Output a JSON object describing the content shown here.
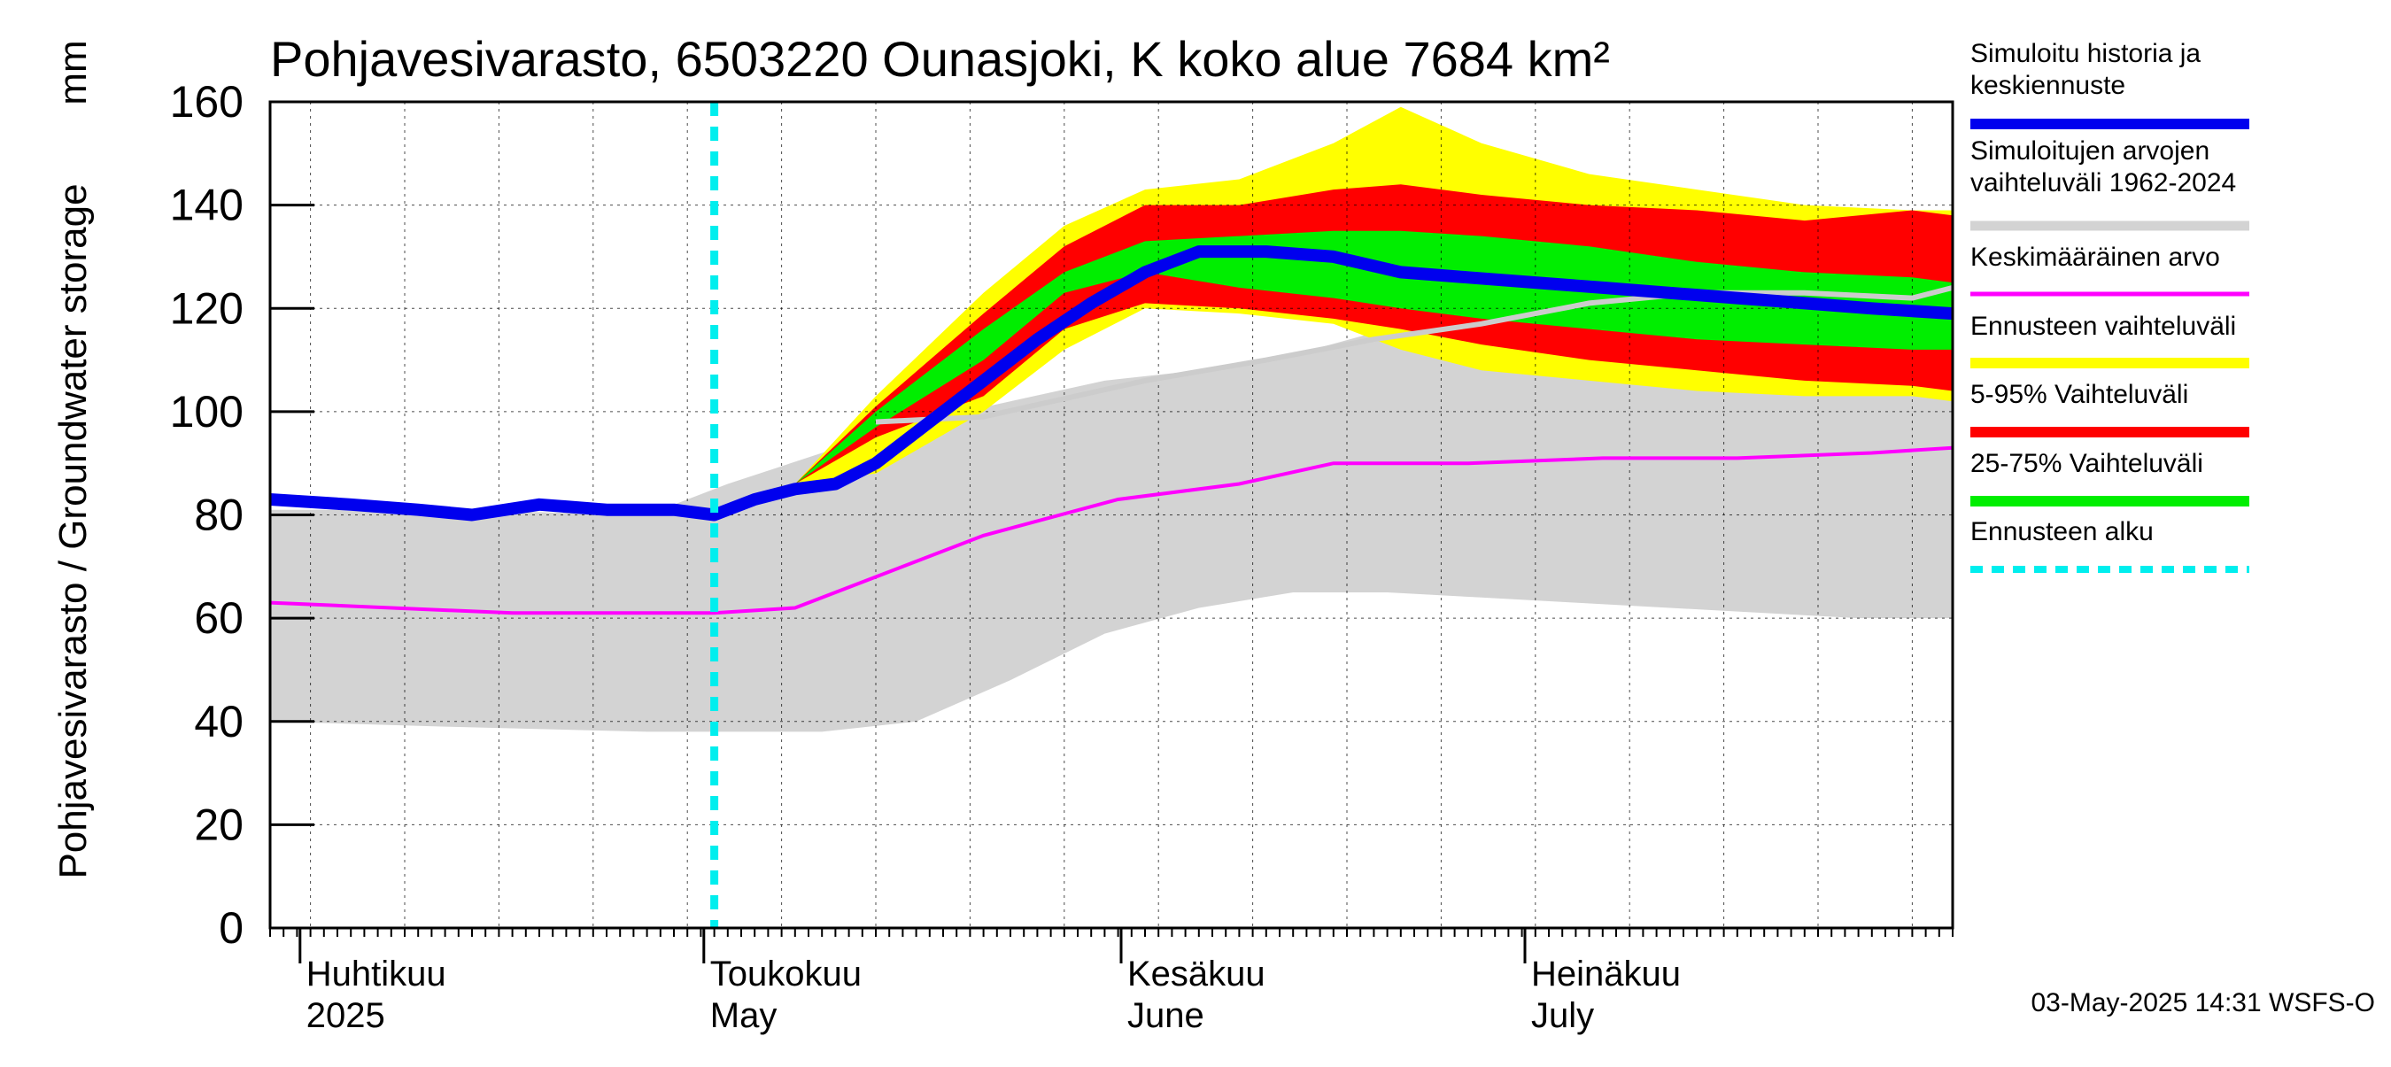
{
  "chart_data": {
    "type": "area",
    "title": "Pohjavesivarasto, 6503220 Ounasjoki, K koko alue 7684 km²",
    "ylabel": "Pohjavesivarasto / Groundwater storage",
    "yunit": "mm",
    "ylim": [
      0,
      160
    ],
    "yticks": [
      0,
      20,
      40,
      60,
      80,
      100,
      120,
      140,
      160
    ],
    "xlim": [
      "2025-03-28",
      "2025-07-31"
    ],
    "grid": true,
    "legend_position": "right",
    "month_labels": [
      {
        "date": "2025-04-01",
        "fi": "Huhtikuu",
        "en": "2025"
      },
      {
        "date": "2025-05-01",
        "fi": "Toukokuu",
        "en": "May"
      },
      {
        "date": "2025-06-01",
        "fi": "Kesäkuu",
        "en": "June"
      },
      {
        "date": "2025-07-01",
        "fi": "Heinäkuu",
        "en": "July"
      }
    ],
    "forecast_start": "2025-04-30",
    "timestamp": "03-May-2025 14:31 WSFS-O",
    "legend": [
      {
        "key": "sim",
        "label": "Simuloitu historia ja keskiennuste",
        "lines": [
          "Simuloitu historia ja",
          "keskiennuste"
        ],
        "color": "#0000ee",
        "kind": "line"
      },
      {
        "key": "range",
        "label": "Simuloitujen arvojen vaihteluväli 1962-2024",
        "lines": [
          "Simuloitujen arvojen",
          "vaihteluväli 1962-2024"
        ],
        "color": "#d3d3d3",
        "kind": "band"
      },
      {
        "key": "mean",
        "label": "Keskimääräinen arvo",
        "lines": [
          "Keskimääräinen arvo"
        ],
        "color": "#ff00ff",
        "kind": "line"
      },
      {
        "key": "fc_range",
        "label": "Ennusteen vaihteluväli",
        "lines": [
          "Ennusteen vaihteluväli"
        ],
        "color": "#ffff00",
        "kind": "band"
      },
      {
        "key": "p5_95",
        "label": "5-95% Vaihteluväli",
        "lines": [
          "5-95% Vaihteluväli"
        ],
        "color": "#ff0000",
        "kind": "band"
      },
      {
        "key": "p25_75",
        "label": "25-75% Vaihteluväli",
        "lines": [
          "25-75% Vaihteluväli"
        ],
        "color": "#00ee00",
        "kind": "band"
      },
      {
        "key": "fc_start",
        "label": "Ennusteen alku",
        "lines": [
          "Ennusteen alku"
        ],
        "color": "#00eeee",
        "kind": "dashed"
      }
    ],
    "series": {
      "hist_range": {
        "x": [
          "2025-03-28",
          "2025-04-10",
          "2025-04-25",
          "2025-05-01",
          "2025-05-08",
          "2025-05-15",
          "2025-05-22",
          "2025-05-29",
          "2025-06-05",
          "2025-06-12",
          "2025-06-19",
          "2025-06-26",
          "2025-07-03",
          "2025-07-10",
          "2025-07-17",
          "2025-07-24",
          "2025-07-31"
        ],
        "low": [
          40,
          39,
          38,
          38,
          38,
          40,
          48,
          57,
          62,
          65,
          65,
          64,
          63,
          62,
          61,
          60,
          60
        ],
        "high": [
          81,
          81,
          80,
          86,
          92,
          98,
          102,
          106,
          108,
          111,
          116,
          110,
          108,
          106,
          105,
          104,
          103
        ]
      },
      "mean_line": {
        "x": [
          "2025-03-28",
          "2025-04-15",
          "2025-04-30",
          "2025-05-06",
          "2025-05-12",
          "2025-05-20",
          "2025-05-30",
          "2025-06-08",
          "2025-06-15",
          "2025-06-25",
          "2025-07-05",
          "2025-07-15",
          "2025-07-25",
          "2025-07-31"
        ],
        "y": [
          63,
          61,
          61,
          62,
          68,
          76,
          83,
          86,
          90,
          90,
          91,
          91,
          92,
          93
        ]
      },
      "hist_median_line": {
        "x": [
          "2025-05-12",
          "2025-05-20",
          "2025-06-01",
          "2025-06-10",
          "2025-06-18",
          "2025-06-26",
          "2025-07-04",
          "2025-07-12",
          "2025-07-20",
          "2025-07-28",
          "2025-07-31"
        ],
        "y": [
          98,
          99,
          106,
          110,
          114,
          117,
          121,
          123,
          123,
          122,
          124
        ]
      },
      "fc_range": {
        "x": [
          "2025-05-06",
          "2025-05-12",
          "2025-05-20",
          "2025-05-26",
          "2025-06-01",
          "2025-06-08",
          "2025-06-15",
          "2025-06-20",
          "2025-06-26",
          "2025-07-04",
          "2025-07-12",
          "2025-07-20",
          "2025-07-28",
          "2025-07-31"
        ],
        "low": [
          86,
          88,
          100,
          112,
          120,
          119,
          117,
          112,
          108,
          106,
          104,
          103,
          103,
          102
        ],
        "high": [
          86,
          103,
          123,
          136,
          143,
          145,
          152,
          159,
          152,
          146,
          143,
          140,
          139,
          139
        ]
      },
      "p5_95": {
        "x": [
          "2025-05-06",
          "2025-05-12",
          "2025-05-20",
          "2025-05-26",
          "2025-06-01",
          "2025-06-08",
          "2025-06-15",
          "2025-06-20",
          "2025-06-26",
          "2025-07-04",
          "2025-07-12",
          "2025-07-20",
          "2025-07-28",
          "2025-07-31"
        ],
        "low": [
          86,
          95,
          103,
          116,
          121,
          120,
          118,
          116,
          113,
          110,
          108,
          106,
          105,
          104
        ],
        "high": [
          86,
          101,
          119,
          132,
          140,
          140,
          143,
          144,
          142,
          140,
          139,
          137,
          139,
          138
        ]
      },
      "p25_75": {
        "x": [
          "2025-05-06",
          "2025-05-12",
          "2025-05-20",
          "2025-05-26",
          "2025-06-01",
          "2025-06-08",
          "2025-06-15",
          "2025-06-20",
          "2025-06-26",
          "2025-07-04",
          "2025-07-12",
          "2025-07-20",
          "2025-07-28",
          "2025-07-31"
        ],
        "low": [
          86,
          97,
          110,
          123,
          127,
          124,
          122,
          120,
          118,
          116,
          114,
          113,
          112,
          112
        ],
        "high": [
          86,
          100,
          116,
          127,
          133,
          134,
          135,
          135,
          134,
          132,
          129,
          127,
          126,
          125
        ]
      },
      "sim_line": {
        "x": [
          "2025-03-28",
          "2025-04-03",
          "2025-04-08",
          "2025-04-12",
          "2025-04-17",
          "2025-04-22",
          "2025-04-27",
          "2025-04-30",
          "2025-05-03",
          "2025-05-06",
          "2025-05-09",
          "2025-05-12",
          "2025-05-16",
          "2025-05-20",
          "2025-05-24",
          "2025-05-28",
          "2025-06-01",
          "2025-06-05",
          "2025-06-10",
          "2025-06-15",
          "2025-06-20",
          "2025-06-25",
          "2025-06-30",
          "2025-07-05",
          "2025-07-10",
          "2025-07-15",
          "2025-07-20",
          "2025-07-25",
          "2025-07-31"
        ],
        "y": [
          83,
          82,
          81,
          80,
          82,
          81,
          81,
          80,
          83,
          85,
          86,
          90,
          98,
          106,
          114,
          121,
          127,
          131,
          131,
          130,
          127,
          126,
          125,
          124,
          123,
          122,
          121,
          120,
          119
        ]
      }
    }
  }
}
